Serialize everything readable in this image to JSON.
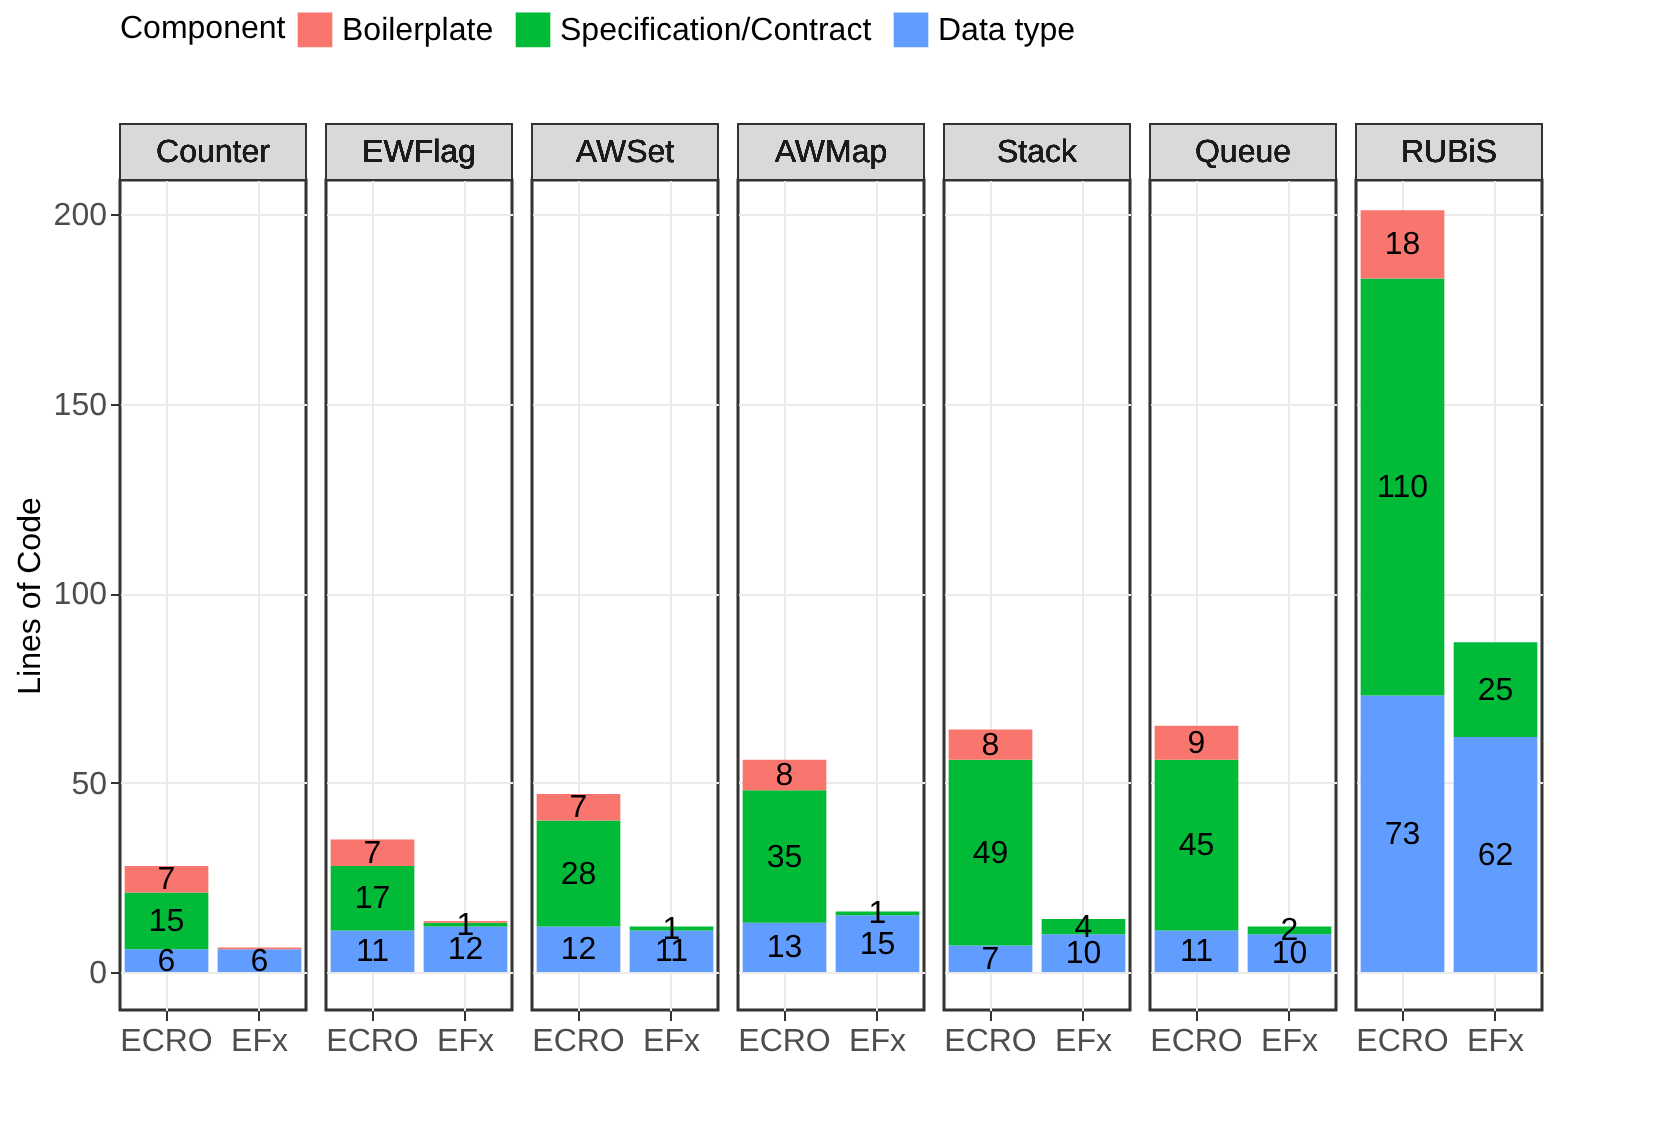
{
  "chart_data": [
    {
      "type": "bar",
      "title": "Counter",
      "stacked": true,
      "categories": [
        "ECRO",
        "EFx"
      ],
      "ylabel": "Lines of Code",
      "legend_title": "Component",
      "legend": "top",
      "grid": true,
      "ylim": [
        -10,
        209
      ],
      "yticks": [
        0,
        50,
        100,
        150,
        200
      ],
      "series": [
        {
          "name": "Data type",
          "color": "#619cff",
          "values": [
            6,
            6
          ],
          "value_labels": [
            "6",
            "6"
          ]
        },
        {
          "name": "Specification/Contract",
          "color": "#00ba38",
          "values": [
            15,
            null
          ],
          "value_labels": [
            "15",
            null
          ]
        },
        {
          "name": "Boilerplate",
          "color": "#f8766d",
          "values": [
            7,
            0.5
          ],
          "value_labels": [
            "7",
            null
          ]
        }
      ]
    },
    {
      "type": "bar",
      "title": "EWFlag",
      "stacked": true,
      "categories": [
        "ECRO",
        "EFx"
      ],
      "grid": true,
      "tick_labels": "x",
      "ylim": [
        -10,
        209
      ],
      "yticks": [
        0,
        50,
        100,
        150,
        200
      ],
      "series": [
        {
          "name": "Data type",
          "color": "#619cff",
          "values": [
            11,
            12
          ],
          "value_labels": [
            "11",
            "12"
          ]
        },
        {
          "name": "Specification/Contract",
          "color": "#00ba38",
          "values": [
            17,
            1
          ],
          "value_labels": [
            "17",
            "1"
          ]
        },
        {
          "name": "Boilerplate",
          "color": "#f8766d",
          "values": [
            7,
            0.5
          ],
          "value_labels": [
            "7",
            null
          ]
        }
      ]
    },
    {
      "type": "bar",
      "title": "AWSet",
      "stacked": true,
      "categories": [
        "ECRO",
        "EFx"
      ],
      "grid": true,
      "tick_labels": "x",
      "ylim": [
        -10,
        209
      ],
      "yticks": [
        0,
        50,
        100,
        150,
        200
      ],
      "series": [
        {
          "name": "Data type",
          "color": "#619cff",
          "values": [
            12,
            11
          ],
          "value_labels": [
            "12",
            "11"
          ]
        },
        {
          "name": "Specification/Contract",
          "color": "#00ba38",
          "values": [
            28,
            1
          ],
          "value_labels": [
            "28",
            "1"
          ]
        },
        {
          "name": "Boilerplate",
          "color": "#f8766d",
          "values": [
            7,
            null
          ],
          "value_labels": [
            "7",
            null
          ]
        }
      ]
    },
    {
      "type": "bar",
      "title": "AWMap",
      "stacked": true,
      "categories": [
        "ECRO",
        "EFx"
      ],
      "grid": true,
      "tick_labels": "x",
      "ylim": [
        -10,
        209
      ],
      "yticks": [
        0,
        50,
        100,
        150,
        200
      ],
      "series": [
        {
          "name": "Data type",
          "color": "#619cff",
          "values": [
            13,
            15
          ],
          "value_labels": [
            "13",
            "15"
          ]
        },
        {
          "name": "Specification/Contract",
          "color": "#00ba38",
          "values": [
            35,
            1
          ],
          "value_labels": [
            "35",
            "1"
          ]
        },
        {
          "name": "Boilerplate",
          "color": "#f8766d",
          "values": [
            8,
            null
          ],
          "value_labels": [
            "8",
            null
          ]
        }
      ]
    },
    {
      "type": "bar",
      "title": "Stack",
      "stacked": true,
      "categories": [
        "ECRO",
        "EFx"
      ],
      "grid": true,
      "tick_labels": "x",
      "ylim": [
        -10,
        209
      ],
      "yticks": [
        0,
        50,
        100,
        150,
        200
      ],
      "series": [
        {
          "name": "Data type",
          "color": "#619cff",
          "values": [
            7,
            10
          ],
          "value_labels": [
            "7",
            "10"
          ]
        },
        {
          "name": "Specification/Contract",
          "color": "#00ba38",
          "values": [
            49,
            4
          ],
          "value_labels": [
            "49",
            "4"
          ]
        },
        {
          "name": "Boilerplate",
          "color": "#f8766d",
          "values": [
            8,
            null
          ],
          "value_labels": [
            "8",
            null
          ]
        }
      ]
    },
    {
      "type": "bar",
      "title": "Queue",
      "stacked": true,
      "categories": [
        "ECRO",
        "EFx"
      ],
      "grid": true,
      "tick_labels": "x",
      "ylim": [
        -10,
        209
      ],
      "yticks": [
        0,
        50,
        100,
        150,
        200
      ],
      "series": [
        {
          "name": "Data type",
          "color": "#619cff",
          "values": [
            11,
            10
          ],
          "value_labels": [
            "11",
            "10"
          ]
        },
        {
          "name": "Specification/Contract",
          "color": "#00ba38",
          "values": [
            45,
            2
          ],
          "value_labels": [
            "45",
            "2"
          ]
        },
        {
          "name": "Boilerplate",
          "color": "#f8766d",
          "values": [
            9,
            null
          ],
          "value_labels": [
            "9",
            null
          ]
        }
      ]
    },
    {
      "type": "bar",
      "title": "RUBiS",
      "stacked": true,
      "categories": [
        "ECRO",
        "EFx"
      ],
      "grid": true,
      "tick_labels": "x",
      "ylim": [
        -10,
        209
      ],
      "yticks": [
        0,
        50,
        100,
        150,
        200
      ],
      "series": [
        {
          "name": "Data type",
          "color": "#619cff",
          "values": [
            73,
            62
          ],
          "value_labels": [
            "73",
            "62"
          ]
        },
        {
          "name": "Specification/Contract",
          "color": "#00ba38",
          "values": [
            110,
            25
          ],
          "value_labels": [
            "110",
            "25"
          ]
        },
        {
          "name": "Boilerplate",
          "color": "#f8766d",
          "values": [
            18,
            null
          ],
          "value_labels": [
            "18",
            null
          ]
        }
      ]
    }
  ]
}
